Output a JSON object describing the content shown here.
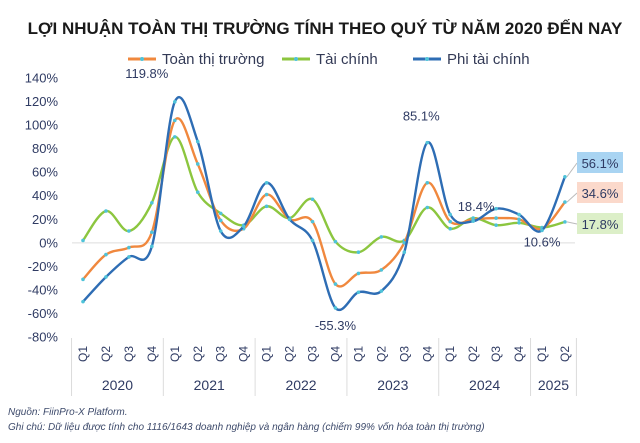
{
  "chart_data": {
    "type": "line",
    "title": "LỢI NHUẬN TOÀN THỊ TRƯỜNG TÍNH THEO QUÝ TỪ NĂM 2020 ĐẾN NAY",
    "categories": [
      "Q1",
      "Q2",
      "Q3",
      "Q4",
      "Q1",
      "Q2",
      "Q3",
      "Q4",
      "Q1",
      "Q2",
      "Q3",
      "Q4",
      "Q1",
      "Q2",
      "Q3",
      "Q4",
      "Q1",
      "Q2",
      "Q3",
      "Q4",
      "Q1",
      "Q2"
    ],
    "years": [
      "2020",
      "2021",
      "2022",
      "2023",
      "2024",
      "2025"
    ],
    "ylim": [
      -80,
      140
    ],
    "yticks": [
      "140%",
      "120%",
      "100%",
      "80%",
      "60%",
      "40%",
      "20%",
      "0%",
      "-20%",
      "-40%",
      "-60%",
      "-80%"
    ],
    "legend_position": "top",
    "series": [
      {
        "name": "Toàn thị trường",
        "color": "#f0883e",
        "values": [
          -31,
          -10,
          -4,
          9,
          104,
          67,
          19,
          12,
          41,
          20,
          18,
          -35,
          -26,
          -23,
          0,
          51,
          18,
          20,
          21,
          20,
          12,
          34.6
        ]
      },
      {
        "name": "Tài chính",
        "color": "#8cc63f",
        "values": [
          2,
          27,
          10,
          34,
          90,
          43,
          25,
          15,
          31,
          21,
          37,
          1,
          -8,
          5,
          2,
          30,
          12,
          21,
          15,
          17,
          13,
          17.8
        ]
      },
      {
        "name": "Phi tài chính",
        "color": "#2e6db4",
        "values": [
          -50,
          -29,
          -12,
          -3,
          119.8,
          86,
          10,
          14,
          51,
          20,
          2,
          -55.3,
          -42,
          -41,
          -8,
          85.1,
          24,
          18.4,
          29,
          24,
          10.6,
          56.1
        ]
      }
    ],
    "annotations": [
      {
        "text": "119.8%",
        "series": 2,
        "index": 4
      },
      {
        "text": "-55.3%",
        "series": 2,
        "index": 11
      },
      {
        "text": "85.1%",
        "series": 2,
        "index": 15
      },
      {
        "text": "18.4%",
        "series": 2,
        "index": 17
      },
      {
        "text": "10.6%",
        "series": 2,
        "index": 20
      },
      {
        "text": "56.1%",
        "series": 2,
        "index": 21,
        "box_color": "#a9d4f2"
      },
      {
        "text": "34.6%",
        "series": 0,
        "index": 21,
        "box_color": "#fbd9cb"
      },
      {
        "text": "17.8%",
        "series": 1,
        "index": 21,
        "box_color": "#dcefc8"
      }
    ],
    "grid": false,
    "marker_color": "#4fc3d9"
  },
  "footnotes": {
    "source": "Nguồn: FiinPro-X Platform.",
    "note": "Ghi chú: Dữ liệu được tính cho 1116/1643 doanh nghiệp và ngân hàng (chiếm 99% vốn hóa toàn thị trường)"
  }
}
